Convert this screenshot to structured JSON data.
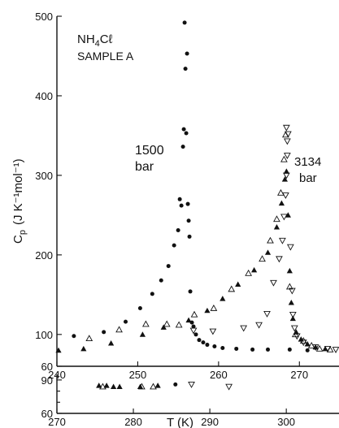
{
  "chart_data": {
    "type": "scatter",
    "annotations": {
      "sample_line1": "NH",
      "sample_sub": "4",
      "sample_suffix": "Cℓ",
      "sample_line2": "SAMPLE A",
      "p1500_line1": "1500",
      "p1500_line2": "bar",
      "p3134_line1": "3134",
      "p3134_line2": "bar"
    },
    "ylabel_main": "C",
    "ylabel_sub": "p",
    "ylabel_rest": "(J K⁻¹mol⁻¹)",
    "xlabel": "T (K)",
    "main_panel": {
      "xlim": [
        240,
        275
      ],
      "ylim": [
        60,
        500
      ],
      "x_ticks": [
        240,
        250,
        260,
        270
      ],
      "x_tick_labels": [
        "240",
        "250",
        "260",
        "270"
      ],
      "y_ticks": [
        60,
        100,
        200,
        300,
        400,
        500
      ],
      "y_tick_labels": [
        "60",
        "100",
        "200",
        "300",
        "400",
        "500"
      ],
      "series": [
        {
          "marker": "filled-circle",
          "points": [
            [
              242.1,
              98
            ],
            [
              245.8,
              103
            ],
            [
              248.5,
              116
            ],
            [
              250.3,
              133
            ],
            [
              251.8,
              151
            ],
            [
              252.9,
              168
            ],
            [
              253.8,
              186
            ],
            [
              254.5,
              212
            ],
            [
              255.0,
              231
            ],
            [
              255.2,
              270
            ],
            [
              255.4,
              262
            ],
            [
              255.6,
              336
            ],
            [
              255.7,
              358
            ],
            [
              255.9,
              434
            ],
            [
              256.1,
              453
            ],
            [
              255.8,
              492
            ],
            [
              256.0,
              353
            ],
            [
              256.2,
              264
            ],
            [
              256.3,
              243
            ],
            [
              256.4,
              223
            ],
            [
              256.5,
              154
            ],
            [
              256.7,
              115
            ],
            [
              256.9,
              110
            ],
            [
              257.2,
              100
            ],
            [
              257.6,
              93
            ],
            [
              258.1,
              90
            ],
            [
              258.6,
              87
            ],
            [
              259.5,
              85
            ],
            [
              260.5,
              83
            ],
            [
              262.2,
              82
            ],
            [
              264.2,
              81
            ],
            [
              266.1,
              81
            ],
            [
              268.8,
              81
            ],
            [
              271.0,
              80
            ]
          ]
        },
        {
          "marker": "filled-triangle",
          "points": [
            [
              240.2,
              80
            ],
            [
              243.3,
              82
            ],
            [
              246.7,
              89
            ],
            [
              250.6,
              100
            ],
            [
              253.2,
              109
            ],
            [
              256.3,
              118
            ],
            [
              258.6,
              130
            ],
            [
              260.5,
              145
            ],
            [
              262.4,
              163
            ],
            [
              264.4,
              181
            ],
            [
              266.1,
              203
            ],
            [
              267.2,
              235
            ],
            [
              267.8,
              265
            ],
            [
              268.2,
              295
            ],
            [
              268.4,
              305
            ],
            [
              268.6,
              250
            ],
            [
              268.8,
              180
            ],
            [
              269.0,
              140
            ],
            [
              269.2,
              120
            ],
            [
              269.6,
              103
            ],
            [
              270.2,
              94
            ],
            [
              271.0,
              88
            ],
            [
              272.0,
              84
            ],
            [
              273.2,
              82
            ]
          ]
        },
        {
          "marker": "open-triangle",
          "points": [
            [
              244.0,
              95
            ],
            [
              247.7,
              106
            ],
            [
              251.0,
              113
            ],
            [
              253.6,
              113
            ],
            [
              255.1,
              112
            ],
            [
              257.0,
              125
            ],
            [
              259.4,
              133
            ],
            [
              261.6,
              157
            ],
            [
              263.7,
              177
            ],
            [
              265.4,
              195
            ],
            [
              266.4,
              218
            ],
            [
              267.2,
              245
            ],
            [
              267.7,
              278
            ],
            [
              268.1,
              320
            ],
            [
              268.3,
              351
            ],
            [
              268.8,
              160
            ],
            [
              269.5,
              100
            ],
            [
              270.5,
              92
            ],
            [
              271.5,
              86
            ],
            [
              272.5,
              82
            ],
            [
              273.8,
              81
            ]
          ]
        },
        {
          "marker": "open-inverted-triangle",
          "points": [
            [
              256.9,
              105
            ],
            [
              259.3,
              104
            ],
            [
              263.1,
              108
            ],
            [
              265.0,
              112
            ],
            [
              266.0,
              126
            ],
            [
              266.8,
              165
            ],
            [
              267.5,
              195
            ],
            [
              267.9,
              218
            ],
            [
              268.1,
              248
            ],
            [
              268.3,
              275
            ],
            [
              268.4,
              300
            ],
            [
              268.5,
              325
            ],
            [
              268.5,
              343
            ],
            [
              268.6,
              352
            ],
            [
              268.4,
              360
            ],
            [
              268.9,
              210
            ],
            [
              269.1,
              155
            ],
            [
              269.2,
              125
            ],
            [
              269.4,
              108
            ],
            [
              269.7,
              98
            ],
            [
              270.5,
              90
            ],
            [
              272.0,
              84
            ],
            [
              273.5,
              82
            ],
            [
              274.5,
              81
            ]
          ]
        }
      ]
    },
    "lower_panel": {
      "xlim": [
        270,
        307
      ],
      "ylim": [
        60,
        95
      ],
      "x_ticks": [
        270,
        280,
        290,
        300
      ],
      "x_tick_labels": [
        "270",
        "280",
        "290",
        "300"
      ],
      "y_ticks": [
        60,
        90
      ],
      "y_tick_labels": [
        "60",
        "90"
      ],
      "y_minor_ticks": [
        70,
        80
      ],
      "series": [
        {
          "marker": "filled-triangle",
          "points": [
            [
              275.5,
              85
            ],
            [
              276.5,
              85
            ],
            [
              277.4,
              84
            ],
            [
              278.2,
              84
            ],
            [
              280.9,
              84
            ],
            [
              283.2,
              85
            ]
          ]
        },
        {
          "marker": "open-triangle",
          "points": [
            [
              276.0,
              84
            ],
            [
              281.1,
              84
            ],
            [
              282.6,
              84
            ]
          ]
        },
        {
          "marker": "filled-circle",
          "points": [
            [
              285.5,
              86
            ]
          ]
        },
        {
          "marker": "open-inverted-triangle",
          "points": [
            [
              287.6,
              86
            ],
            [
              292.5,
              84
            ]
          ]
        }
      ]
    }
  }
}
